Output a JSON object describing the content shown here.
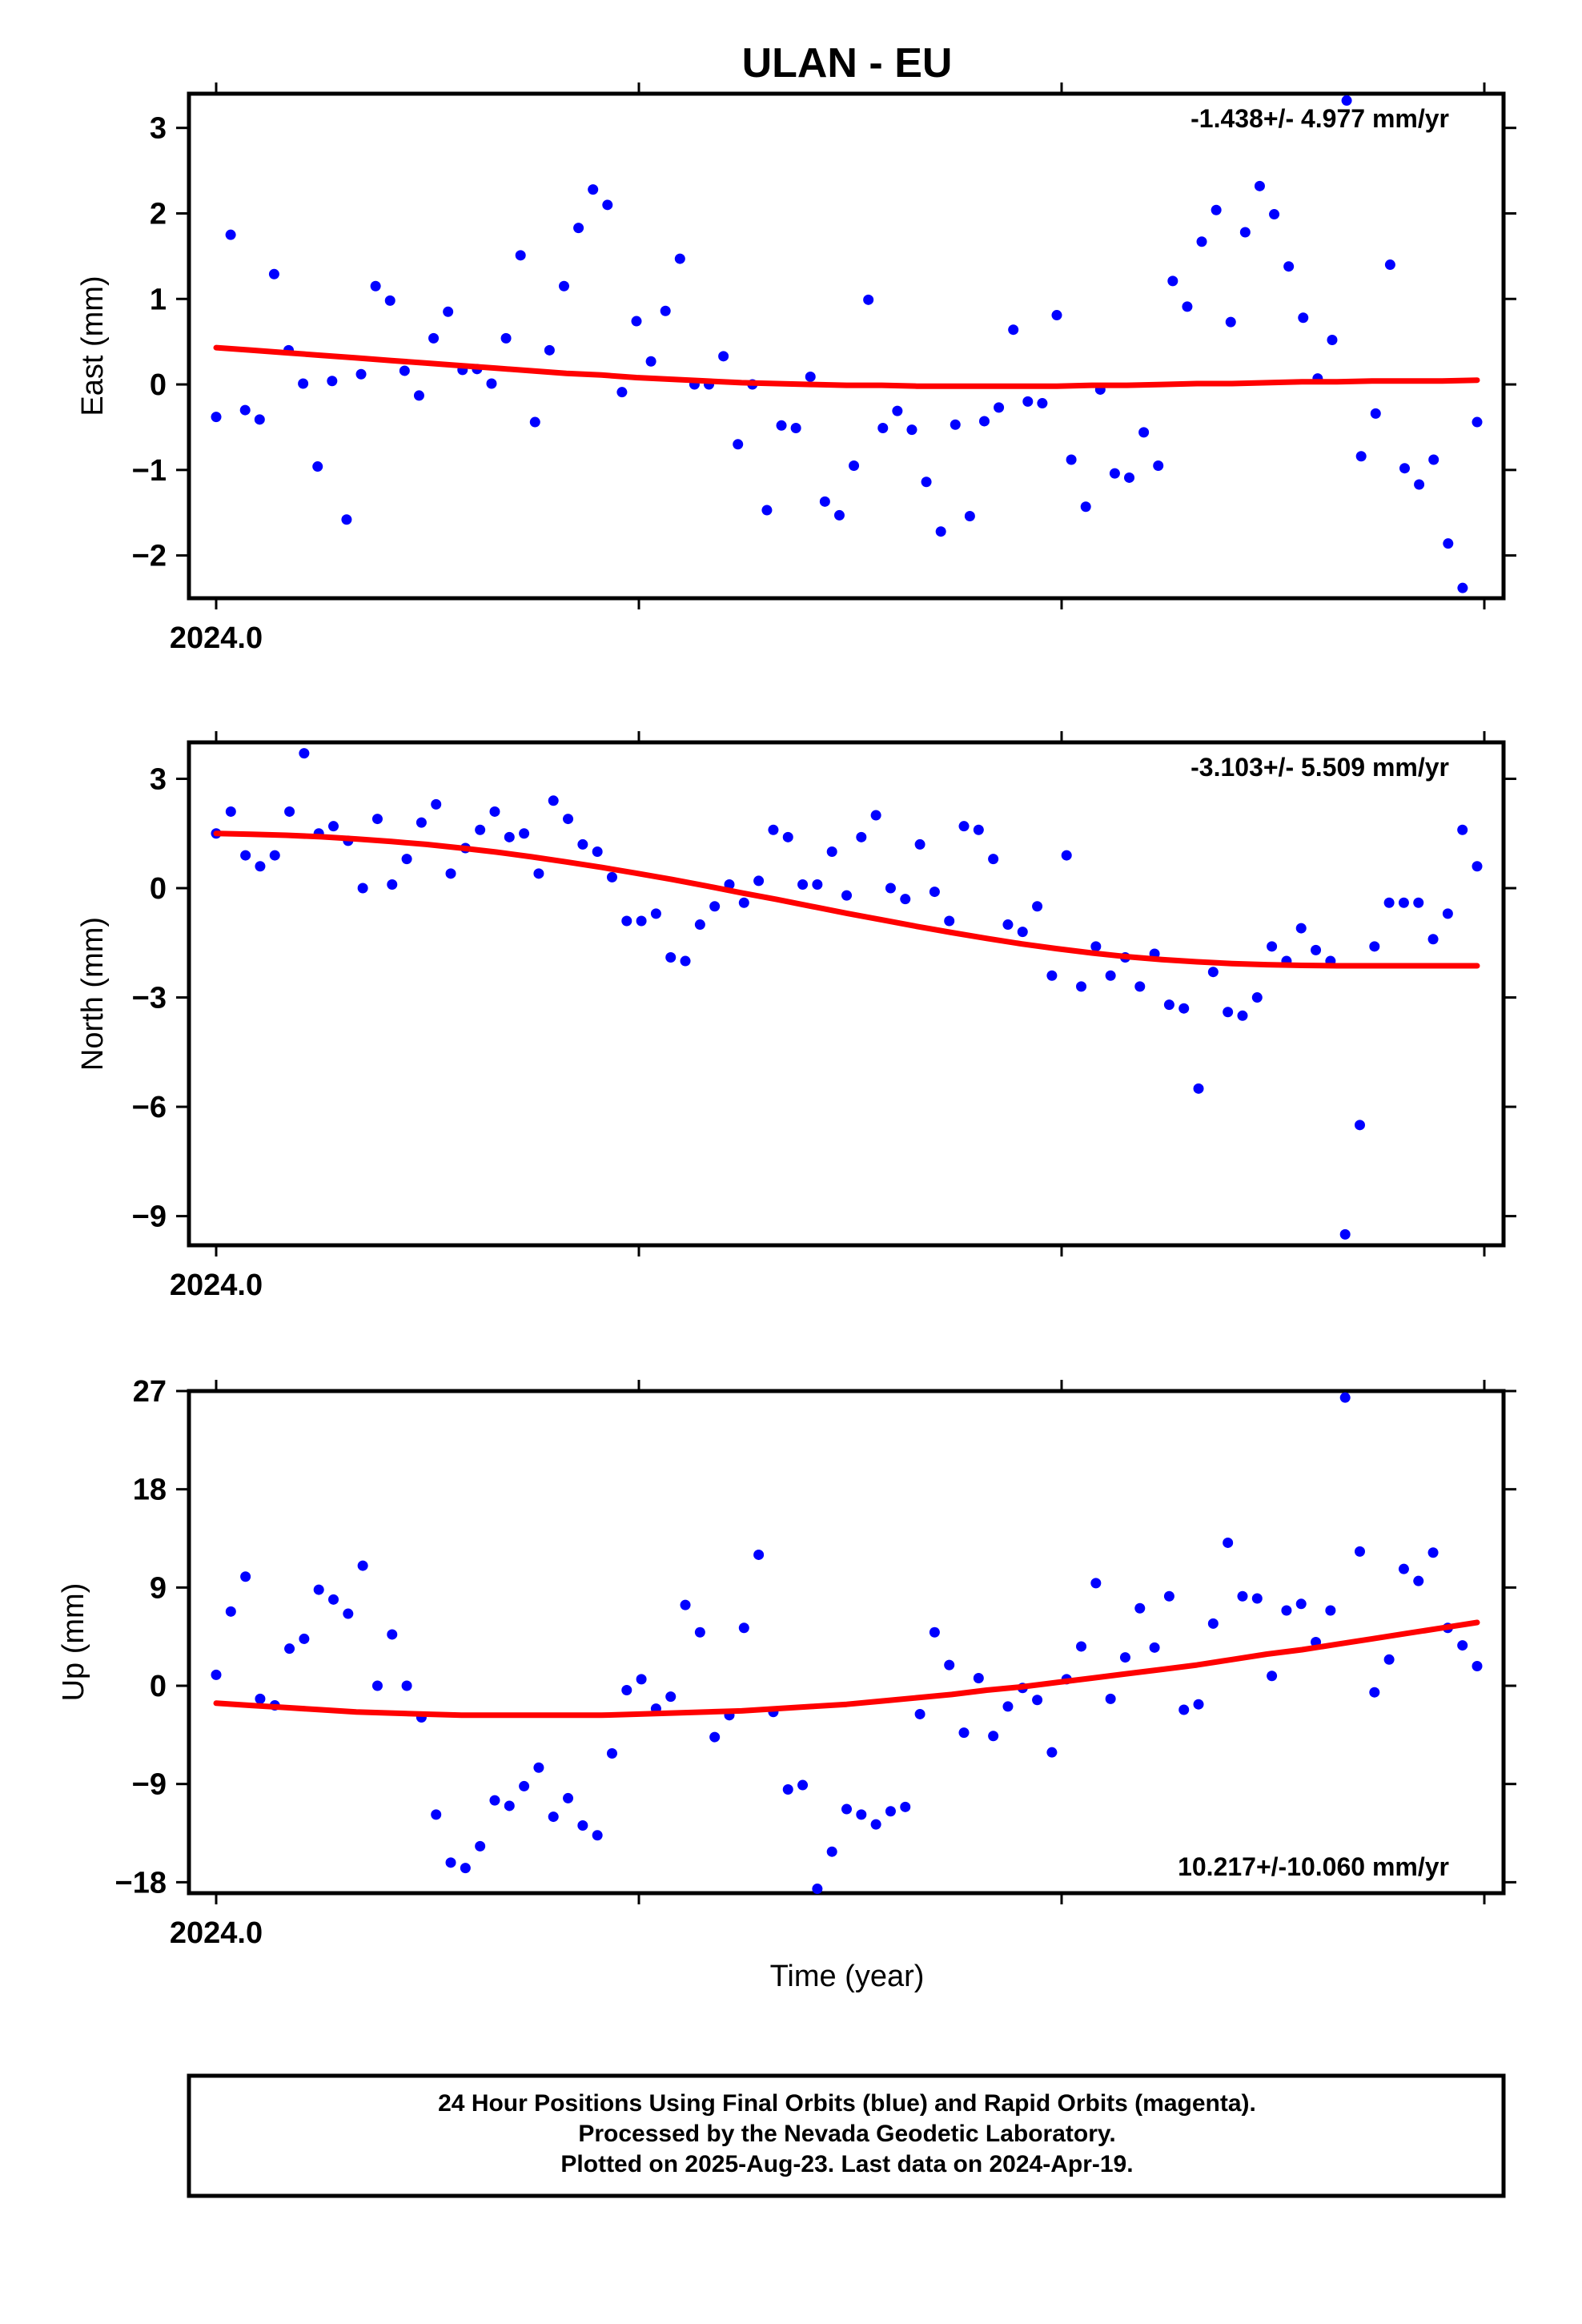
{
  "title": "ULAN - EU",
  "xlabel": "Time (year)",
  "colors": {
    "points": "#0000ff",
    "trend": "#ff0000",
    "frame": "#000000"
  },
  "footer": {
    "line1": "24 Hour Positions Using Final Orbits (blue) and Rapid Orbits (magenta).",
    "line2": "Processed by the Nevada Geodetic Laboratory.",
    "line3": "Plotted on 2025-Aug-23. Last data on 2024-Apr-19."
  },
  "chart_data": [
    {
      "type": "scatter",
      "ylabel": "East (mm)",
      "xtick_label": "2024.0",
      "x_range": [
        2024.0,
        2024.3
      ],
      "ylim": [
        -2.5,
        3.4
      ],
      "yticks": [
        3,
        2,
        1,
        0,
        -1,
        -2
      ],
      "ytick_labels": [
        "3",
        "2",
        "1",
        "0",
        "−1",
        "−2"
      ],
      "rate_label": "-1.438+/- 4.977 mm/yr",
      "rate_position": "top-right",
      "points_y": [
        -0.38,
        1.75,
        -0.3,
        -0.41,
        1.29,
        0.4,
        0.01,
        -0.96,
        0.04,
        -1.58,
        0.12,
        1.15,
        0.98,
        0.16,
        -0.13,
        0.54,
        0.85,
        0.17,
        0.18,
        0.01,
        0.54,
        1.51,
        -0.44,
        0.4,
        1.15,
        1.83,
        2.28,
        2.1,
        -0.09,
        0.74,
        0.27,
        0.86,
        1.47,
        0.0,
        0.0,
        0.33,
        -0.7,
        0.0,
        -1.47,
        -0.48,
        -0.51,
        0.09,
        -1.37,
        -1.53,
        -0.95,
        0.99,
        -0.51,
        -0.31,
        -0.53,
        -1.14,
        -1.72,
        -0.47,
        -1.54,
        -0.43,
        -0.27,
        0.64,
        -0.2,
        -0.22,
        0.81,
        -0.88,
        -1.43,
        -0.06,
        -1.04,
        -1.09,
        -0.56,
        -0.95,
        1.21,
        0.91,
        1.67,
        2.04,
        0.73,
        1.78,
        2.32,
        1.99,
        1.38,
        0.78,
        0.07,
        0.52,
        3.32,
        -0.84,
        -0.34,
        1.4,
        -0.98,
        -1.17,
        -0.88,
        -1.86,
        -2.38,
        -0.44
      ],
      "trend_y": [
        0.43,
        0.4,
        0.37,
        0.34,
        0.31,
        0.28,
        0.25,
        0.22,
        0.19,
        0.16,
        0.13,
        0.11,
        0.08,
        0.06,
        0.04,
        0.02,
        0.01,
        0.0,
        -0.01,
        -0.01,
        -0.02,
        -0.02,
        -0.02,
        -0.02,
        -0.02,
        -0.01,
        -0.01,
        0.0,
        0.01,
        0.01,
        0.02,
        0.03,
        0.03,
        0.04,
        0.04,
        0.04,
        0.05
      ]
    },
    {
      "type": "scatter",
      "ylabel": "North (mm)",
      "xtick_label": "2024.0",
      "x_range": [
        2024.0,
        2024.3
      ],
      "ylim": [
        -9.8,
        4.0
      ],
      "yticks": [
        3,
        0,
        -3,
        -6,
        -9
      ],
      "ytick_labels": [
        "3",
        "0",
        "−3",
        "−6",
        "−9"
      ],
      "rate_label": "-3.103+/- 5.509 mm/yr",
      "rate_position": "top-right",
      "points_y": [
        1.5,
        2.1,
        0.9,
        0.6,
        0.9,
        2.1,
        3.7,
        1.5,
        1.7,
        1.3,
        0.0,
        1.9,
        0.1,
        0.8,
        1.8,
        2.3,
        0.4,
        1.1,
        1.6,
        2.1,
        1.4,
        1.5,
        0.4,
        2.4,
        1.9,
        1.2,
        1.0,
        0.3,
        -0.9,
        -0.9,
        -0.7,
        -1.9,
        -2.0,
        -1.0,
        -0.5,
        0.1,
        -0.4,
        0.2,
        1.6,
        1.4,
        0.1,
        0.1,
        1.0,
        -0.2,
        1.4,
        2.0,
        0.0,
        -0.3,
        1.2,
        -0.1,
        -0.9,
        1.7,
        1.6,
        0.8,
        -1.0,
        -1.2,
        -0.5,
        -2.4,
        0.9,
        -2.7,
        -1.6,
        -2.4,
        -1.9,
        -2.7,
        -1.8,
        -3.2,
        -3.3,
        -5.5,
        -2.3,
        -3.4,
        -3.5,
        -3.0,
        -1.6,
        -2.0,
        -1.1,
        -1.7,
        -2.0,
        -9.5,
        -6.5,
        -1.6,
        -0.4,
        -0.4,
        -0.4,
        -1.4,
        -0.7,
        1.6,
        0.6
      ],
      "trend_y": [
        1.5,
        1.48,
        1.45,
        1.41,
        1.35,
        1.28,
        1.2,
        1.1,
        0.99,
        0.86,
        0.72,
        0.57,
        0.41,
        0.24,
        0.06,
        -0.13,
        -0.31,
        -0.5,
        -0.69,
        -0.87,
        -1.05,
        -1.22,
        -1.38,
        -1.53,
        -1.66,
        -1.78,
        -1.88,
        -1.96,
        -2.02,
        -2.07,
        -2.1,
        -2.12,
        -2.13,
        -2.13,
        -2.13,
        -2.13,
        -2.13
      ]
    },
    {
      "type": "scatter",
      "ylabel": "Up (mm)",
      "xtick_label": "2024.0",
      "x_range": [
        2024.0,
        2024.3
      ],
      "ylim": [
        -19.0,
        27.0
      ],
      "yticks": [
        27,
        18,
        9,
        0,
        -9,
        -18
      ],
      "ytick_labels": [
        "27",
        "18",
        "9",
        "0",
        "−9",
        "−18"
      ],
      "rate_label": "10.217+/-10.060 mm/yr",
      "rate_position": "bottom-right",
      "points_y": [
        1.0,
        6.8,
        10.0,
        -1.2,
        -1.8,
        3.4,
        4.3,
        8.8,
        7.9,
        6.6,
        11.0,
        0.0,
        4.7,
        0.0,
        -2.9,
        -11.8,
        -16.2,
        -16.7,
        -14.7,
        -10.5,
        -11.0,
        -9.2,
        -7.5,
        -12.0,
        -10.3,
        -12.8,
        -13.7,
        -6.2,
        -0.4,
        0.6,
        -2.1,
        -1.0,
        7.4,
        4.9,
        -4.7,
        -2.7,
        5.3,
        12.0,
        -2.4,
        -9.5,
        -9.1,
        -18.6,
        -15.2,
        -11.3,
        -11.8,
        -12.7,
        -11.5,
        -11.1,
        -2.6,
        4.9,
        1.9,
        -4.3,
        0.7,
        -4.6,
        -1.9,
        -0.2,
        -1.3,
        -6.1,
        0.6,
        3.6,
        9.4,
        -1.2,
        2.6,
        7.1,
        3.5,
        8.2,
        -2.2,
        -1.7,
        5.7,
        13.1,
        8.2,
        8.0,
        0.9,
        6.9,
        7.5,
        4.0,
        6.9,
        26.4,
        12.3,
        -0.6,
        2.4,
        10.7,
        9.6,
        12.2,
        5.3,
        3.7,
        1.8
      ],
      "trend_y": [
        -1.6,
        -1.8,
        -2.0,
        -2.2,
        -2.4,
        -2.5,
        -2.6,
        -2.7,
        -2.7,
        -2.7,
        -2.7,
        -2.7,
        -2.6,
        -2.5,
        -2.4,
        -2.3,
        -2.1,
        -1.9,
        -1.7,
        -1.4,
        -1.1,
        -0.8,
        -0.4,
        -0.1,
        0.3,
        0.7,
        1.1,
        1.5,
        1.9,
        2.4,
        2.9,
        3.3,
        3.8,
        4.3,
        4.8,
        5.3,
        5.8
      ]
    }
  ]
}
